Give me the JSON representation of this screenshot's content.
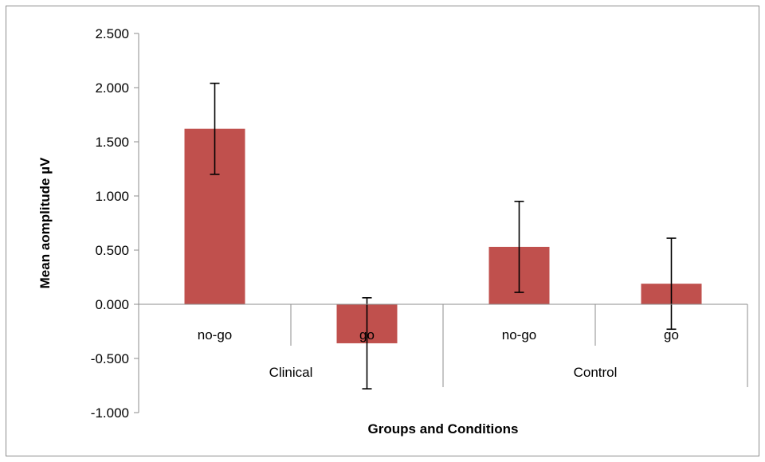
{
  "chart_data": {
    "type": "bar",
    "title": "",
    "xlabel": "Groups and Conditions",
    "ylabel": "Mean aomplitude µV",
    "ylim": [
      -1.0,
      2.5
    ],
    "yticks": [
      2.5,
      2.0,
      1.5,
      1.0,
      0.5,
      0.0,
      -0.5,
      -1.0
    ],
    "ytick_labels": [
      "2.500",
      "2.000",
      "1.500",
      "1.000",
      "0.500",
      "0.000",
      "-0.500",
      "-1.000"
    ],
    "groups": [
      "Clinical",
      "Control"
    ],
    "categories": [
      "no-go",
      "go",
      "no-go",
      "go"
    ],
    "values": [
      1.62,
      -0.36,
      0.53,
      0.19
    ],
    "errors": [
      0.42,
      0.42,
      0.42,
      0.42
    ],
    "bar_color": "#c0504d",
    "grid": false,
    "legend": "none"
  }
}
